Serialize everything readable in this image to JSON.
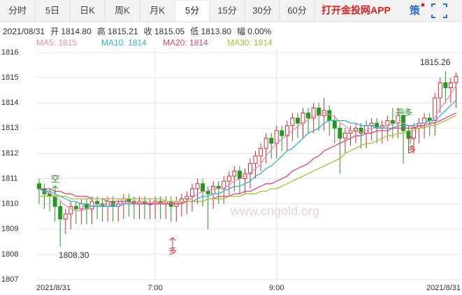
{
  "tabs": [
    "分时",
    "5日",
    "日K",
    "周K",
    "月K",
    "5分",
    "15分",
    "30分",
    "60分"
  ],
  "selected_tab": 5,
  "app_link": "打开金投网APP",
  "strategy": "策",
  "info_bar": [
    "2021/08/31",
    "开 1814.80",
    "高 1815.21",
    "收 1815.05",
    "低 1813.80",
    "幅 0.00%"
  ],
  "chart_data": {
    "type": "candlestick",
    "categories": [
      "2021/8/31",
      null,
      null,
      null,
      null,
      null,
      null,
      null,
      null,
      null,
      null,
      null,
      null,
      null,
      null,
      null,
      null,
      null,
      null,
      null,
      null,
      null,
      "7:00",
      null,
      null,
      null,
      null,
      null,
      null,
      null,
      null,
      null,
      null,
      null,
      null,
      null,
      null,
      null,
      null,
      null,
      null,
      null,
      null,
      null,
      null,
      "9:00",
      null,
      null,
      null,
      null,
      null,
      null,
      null,
      null,
      null,
      null,
      null,
      null,
      null,
      null,
      null,
      null,
      null,
      null,
      null,
      null,
      null,
      null,
      null,
      null,
      null,
      null,
      null,
      null,
      null,
      null,
      null,
      null,
      null,
      "2021/8/31"
    ],
    "open": [
      1810.8,
      1810.6,
      1810.4,
      1810.3,
      1809.9,
      1809.4,
      1809.6,
      1809.9,
      1809.8,
      1810.0,
      1809.8,
      1810.1,
      1810.0,
      1809.9,
      1810.1,
      1809.9,
      1810.0,
      1810.2,
      1810.1,
      1810.0,
      1810.1,
      1810.0,
      1810.0,
      1810.1,
      1810.0,
      1810.1,
      1809.9,
      1810.1,
      1810.2,
      1810.3,
      1810.6,
      1810.8,
      1810.5,
      1810.4,
      1810.7,
      1810.6,
      1810.9,
      1811.1,
      1811.3,
      1811.0,
      1811.2,
      1811.6,
      1811.9,
      1812.2,
      1812.6,
      1812.4,
      1812.9,
      1812.7,
      1813.1,
      1813.4,
      1813.2,
      1813.6,
      1813.4,
      1813.8,
      1813.5,
      1813.7,
      1813.3,
      1813.0,
      1812.6,
      1812.8,
      1812.9,
      1813.0,
      1812.8,
      1813.1,
      1813.2,
      1813.0,
      1813.1,
      1813.3,
      1813.2,
      1813.5,
      1812.9,
      1812.6,
      1813.0,
      1813.2,
      1813.4,
      1813.3,
      1814.2,
      1814.8,
      1814.6,
      1814.8
    ],
    "high": [
      1811.0,
      1810.8,
      1810.6,
      1810.5,
      1810.1,
      1809.8,
      1810.1,
      1810.1,
      1810.2,
      1810.2,
      1810.3,
      1810.3,
      1810.2,
      1810.3,
      1810.3,
      1810.2,
      1810.4,
      1810.4,
      1810.3,
      1810.3,
      1810.3,
      1810.2,
      1810.3,
      1810.3,
      1810.3,
      1810.3,
      1810.3,
      1810.4,
      1810.5,
      1810.8,
      1811.0,
      1811.0,
      1810.7,
      1810.9,
      1810.9,
      1811.1,
      1811.3,
      1811.5,
      1811.5,
      1811.4,
      1811.8,
      1812.1,
      1812.4,
      1812.8,
      1812.8,
      1813.1,
      1813.1,
      1813.3,
      1813.6,
      1813.6,
      1813.8,
      1813.8,
      1814.0,
      1814.0,
      1814.2,
      1813.9,
      1813.5,
      1813.2,
      1813.0,
      1813.1,
      1813.2,
      1813.2,
      1813.3,
      1813.4,
      1813.4,
      1813.3,
      1813.5,
      1813.8,
      1813.8,
      1813.7,
      1813.1,
      1813.2,
      1813.4,
      1813.6,
      1813.6,
      1814.4,
      1815.0,
      1815.26,
      1815.0,
      1815.21
    ],
    "low": [
      1810.0,
      1809.8,
      1809.7,
      1809.3,
      1808.3,
      1808.8,
      1809.0,
      1809.2,
      1809.2,
      1809.2,
      1809.2,
      1809.4,
      1809.3,
      1809.3,
      1809.3,
      1809.3,
      1809.4,
      1809.5,
      1809.4,
      1809.4,
      1809.4,
      1809.4,
      1809.4,
      1809.4,
      1809.4,
      1809.3,
      1809.3,
      1809.5,
      1809.6,
      1809.7,
      1810.0,
      1809.9,
      1809.0,
      1809.8,
      1810.0,
      1810.0,
      1810.3,
      1810.5,
      1810.4,
      1810.4,
      1810.6,
      1811.0,
      1811.3,
      1811.6,
      1811.8,
      1811.8,
      1812.1,
      1812.1,
      1812.5,
      1812.6,
      1812.6,
      1812.8,
      1812.8,
      1812.9,
      1812.9,
      1812.7,
      1812.4,
      1811.2,
      1812.0,
      1812.3,
      1812.4,
      1812.2,
      1812.2,
      1812.5,
      1812.4,
      1812.4,
      1812.5,
      1812.6,
      1812.6,
      1811.6,
      1812.0,
      1812.0,
      1812.4,
      1812.6,
      1812.7,
      1812.7,
      1813.6,
      1814.0,
      1814.0,
      1813.8
    ],
    "close": [
      1810.6,
      1810.4,
      1810.3,
      1809.9,
      1809.4,
      1809.6,
      1809.9,
      1809.8,
      1810.0,
      1809.8,
      1810.1,
      1810.0,
      1809.9,
      1810.1,
      1809.9,
      1810.0,
      1810.2,
      1810.1,
      1810.0,
      1810.1,
      1810.0,
      1810.0,
      1810.1,
      1810.0,
      1810.1,
      1809.9,
      1810.1,
      1810.2,
      1810.3,
      1810.6,
      1810.8,
      1810.5,
      1810.4,
      1810.7,
      1810.6,
      1810.9,
      1811.1,
      1811.3,
      1811.0,
      1811.2,
      1811.6,
      1811.9,
      1812.2,
      1812.6,
      1812.4,
      1812.9,
      1812.7,
      1813.1,
      1813.4,
      1813.2,
      1813.6,
      1813.4,
      1813.8,
      1813.5,
      1813.7,
      1813.3,
      1813.0,
      1812.6,
      1812.8,
      1812.9,
      1813.0,
      1812.8,
      1813.1,
      1813.2,
      1813.0,
      1813.1,
      1813.3,
      1813.2,
      1813.5,
      1812.9,
      1812.6,
      1813.0,
      1813.2,
      1813.4,
      1813.3,
      1814.2,
      1814.8,
      1814.6,
      1814.8,
      1815.05
    ],
    "up_color": "#d42a2a",
    "down_color": "#1e9b1e",
    "series": [
      {
        "name": "MA5: 1815",
        "color": "#f08cb4",
        "values": [
          1810.6,
          1810.5,
          1810.43,
          1810.3,
          1810.12,
          1809.92,
          1809.82,
          1809.72,
          1809.74,
          1809.82,
          1809.92,
          1809.94,
          1809.96,
          1809.98,
          1810.0,
          1809.98,
          1810.02,
          1810.06,
          1810.04,
          1810.08,
          1810.08,
          1810.04,
          1810.04,
          1810.04,
          1810.04,
          1810.02,
          1810.04,
          1810.06,
          1810.12,
          1810.22,
          1810.4,
          1810.48,
          1810.52,
          1810.6,
          1810.6,
          1810.62,
          1810.74,
          1810.92,
          1810.98,
          1811.1,
          1811.24,
          1811.4,
          1811.58,
          1811.9,
          1812.14,
          1812.4,
          1812.56,
          1812.74,
          1812.9,
          1813.06,
          1813.2,
          1813.34,
          1813.48,
          1813.5,
          1813.6,
          1813.54,
          1813.46,
          1813.22,
          1813.08,
          1812.92,
          1812.86,
          1812.82,
          1812.92,
          1813.0,
          1813.02,
          1813.04,
          1813.12,
          1813.16,
          1813.22,
          1813.2,
          1813.1,
          1813.04,
          1813.08,
          1813.02,
          1813.1,
          1813.42,
          1813.78,
          1814.06,
          1814.34,
          1814.69
        ]
      },
      {
        "name": "MA10: 1814",
        "color": "#2fb3d9",
        "values": [
          1810.6,
          1810.5,
          1810.5,
          1810.4,
          1810.3,
          1810.2,
          1810.1,
          1810.1,
          1810.0,
          1810.0,
          1809.9,
          1809.9,
          1809.9,
          1809.9,
          1809.9,
          1809.9,
          1810.0,
          1810.0,
          1810.0,
          1810.0,
          1810.0,
          1810.0,
          1810.0,
          1810.0,
          1810.0,
          1810.0,
          1810.0,
          1810.0,
          1810.1,
          1810.1,
          1810.2,
          1810.3,
          1810.3,
          1810.4,
          1810.4,
          1810.5,
          1810.6,
          1810.7,
          1810.7,
          1810.8,
          1810.9,
          1811.1,
          1811.2,
          1811.4,
          1811.5,
          1811.7,
          1811.9,
          1812.1,
          1812.2,
          1812.4,
          1812.6,
          1812.8,
          1812.9,
          1813.0,
          1813.2,
          1813.3,
          1813.3,
          1813.3,
          1813.3,
          1813.2,
          1813.2,
          1813.1,
          1813.1,
          1813.1,
          1813.0,
          1813.0,
          1813.0,
          1813.0,
          1813.1,
          1813.1,
          1813.1,
          1813.1,
          1813.2,
          1813.2,
          1813.3,
          1813.3,
          1813.5,
          1813.7,
          1813.9,
          1814.1
        ]
      },
      {
        "name": "MA20: 1814",
        "color": "#e0457c",
        "values": [
          1810.6,
          1810.6,
          1810.6,
          1810.5,
          1810.5,
          1810.4,
          1810.4,
          1810.3,
          1810.3,
          1810.3,
          1810.2,
          1810.2,
          1810.2,
          1810.1,
          1810.1,
          1810.1,
          1810.1,
          1810.1,
          1810.0,
          1810.0,
          1810.0,
          1810.0,
          1810.0,
          1810.0,
          1810.0,
          1810.0,
          1810.0,
          1810.0,
          1810.1,
          1810.1,
          1810.1,
          1810.1,
          1810.2,
          1810.2,
          1810.3,
          1810.3,
          1810.3,
          1810.4,
          1810.4,
          1810.5,
          1810.5,
          1810.6,
          1810.7,
          1810.8,
          1810.8,
          1810.9,
          1811.0,
          1811.1,
          1811.3,
          1811.4,
          1811.5,
          1811.6,
          1811.8,
          1811.9,
          1812.1,
          1812.2,
          1812.3,
          1812.4,
          1812.5,
          1812.6,
          1812.7,
          1812.7,
          1812.8,
          1812.8,
          1812.9,
          1812.9,
          1812.9,
          1813.0,
          1813.0,
          1813.0,
          1813.0,
          1813.0,
          1813.1,
          1813.1,
          1813.2,
          1813.2,
          1813.3,
          1813.4,
          1813.5,
          1813.6
        ]
      },
      {
        "name": "MA30: 1814",
        "color": "#a6c23a",
        "values": [
          1810.3,
          1810.3,
          1810.3,
          1810.3,
          1810.3,
          1810.3,
          1810.2,
          1810.2,
          1810.2,
          1810.2,
          1810.2,
          1810.2,
          1810.2,
          1810.2,
          1810.2,
          1810.2,
          1810.2,
          1810.2,
          1810.2,
          1810.2,
          1810.2,
          1810.2,
          1810.2,
          1810.2,
          1810.1,
          1810.1,
          1810.1,
          1810.1,
          1810.1,
          1810.1,
          1810.1,
          1810.1,
          1810.2,
          1810.2,
          1810.2,
          1810.2,
          1810.3,
          1810.3,
          1810.3,
          1810.4,
          1810.4,
          1810.4,
          1810.5,
          1810.5,
          1810.6,
          1810.6,
          1810.7,
          1810.8,
          1810.9,
          1811.0,
          1811.1,
          1811.2,
          1811.3,
          1811.4,
          1811.5,
          1811.6,
          1811.7,
          1811.8,
          1812.0,
          1812.1,
          1812.2,
          1812.3,
          1812.4,
          1812.4,
          1812.5,
          1812.6,
          1812.7,
          1812.7,
          1812.8,
          1812.8,
          1812.9,
          1812.9,
          1813.0,
          1813.0,
          1813.1,
          1813.1,
          1813.2,
          1813.3,
          1813.4,
          1813.5
        ]
      }
    ],
    "ylim": [
      1807,
      1816
    ],
    "yticks": [
      1807,
      1808,
      1809,
      1810,
      1811,
      1812,
      1813,
      1814,
      1815,
      1816
    ],
    "grid": true,
    "annotations": [
      "1815.26",
      "1808.30",
      "空",
      "平多",
      "多",
      "多"
    ],
    "watermark": "www.cngold.org"
  }
}
